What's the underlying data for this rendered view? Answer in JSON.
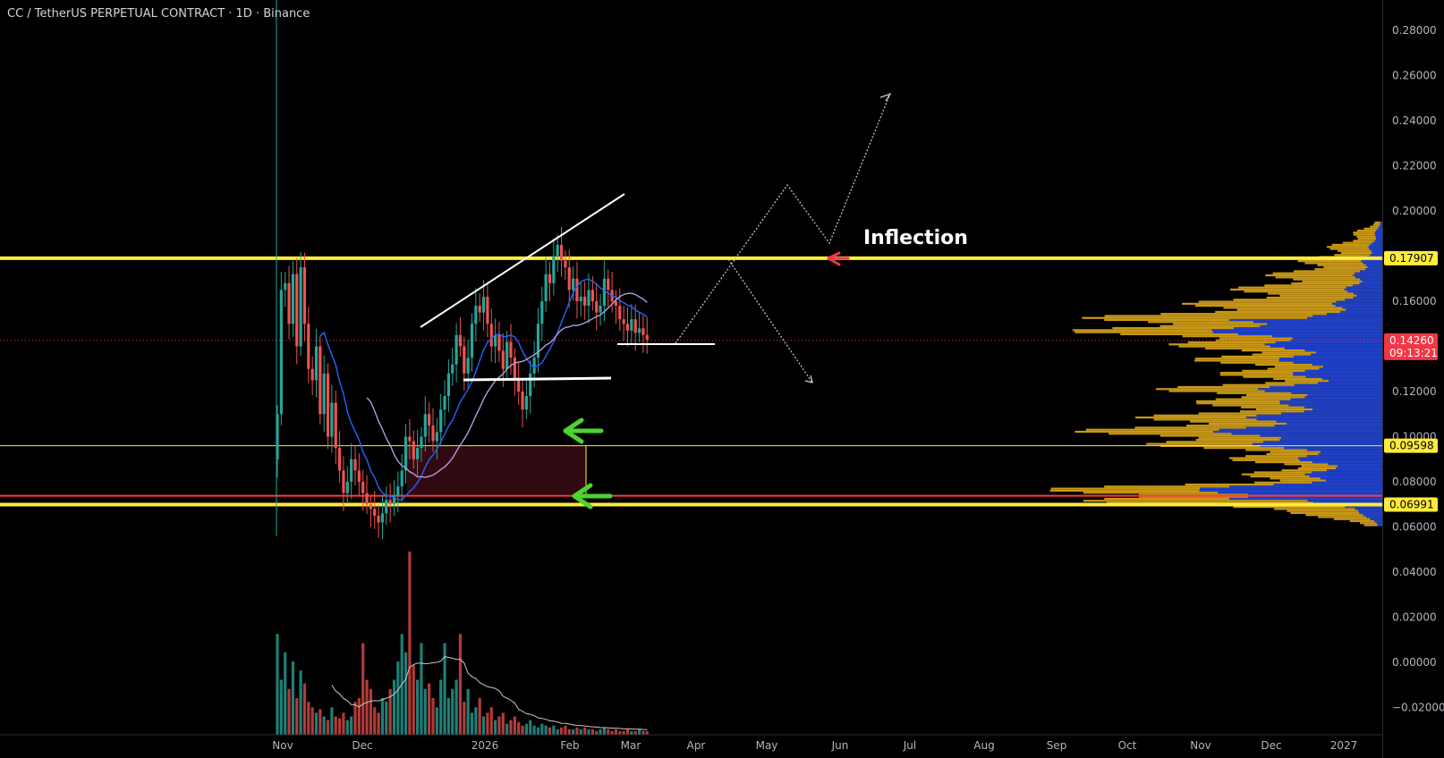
{
  "header": {
    "title": "CC / TetherUS PERPETUAL CONTRACT · 1D · Binance"
  },
  "annotation": {
    "inflection": "Inflection"
  },
  "colors": {
    "background": "#000000",
    "up": "#26a69a",
    "down": "#ef5350",
    "up_volume": "#1f7f77",
    "down_volume": "#b23b39",
    "level": "#ffeb3b",
    "ma_fast": "#2962ff",
    "ma_slow": "#b39ddb",
    "profile_gold": "#d4a017",
    "profile_blue": "#2346d4",
    "current_price": "#f23645",
    "support_red": "#ff3b30",
    "arrow_green": "#4cd430",
    "arrow_red": "#f23645"
  },
  "chart_data": {
    "type": "candlestick",
    "title": "CC / TetherUS PERPETUAL CONTRACT · 1D · Binance",
    "x_ticks": [
      "Nov",
      "Dec",
      "2026",
      "Feb",
      "Mar",
      "Apr",
      "May",
      "Jun",
      "Jul",
      "Aug",
      "Sep",
      "Oct",
      "Nov",
      "Dec",
      "2027"
    ],
    "y_ticks": [
      "0.28000",
      "0.26000",
      "0.24000",
      "0.22000",
      "0.20000",
      "0.18000",
      "0.16000",
      "0.14000",
      "0.12000",
      "0.10000",
      "0.08000",
      "0.06000",
      "0.04000",
      "0.02000",
      "0.00000",
      "−0.02000"
    ],
    "ylim": [
      -0.03,
      0.29
    ],
    "price_labels": {
      "resistance": "0.17907",
      "current": "0.14260",
      "countdown": "09:13:21",
      "mid_support": "0.09598",
      "low_support": "0.06991"
    },
    "levels": {
      "resistance": 0.17907,
      "mid_support": 0.09598,
      "low_support": 0.06991,
      "red_line": 0.0738,
      "current": 0.1426
    },
    "closes": [
      0.11,
      0.165,
      0.168,
      0.15,
      0.172,
      0.14,
      0.175,
      0.15,
      0.13,
      0.125,
      0.14,
      0.11,
      0.128,
      0.1,
      0.115,
      0.095,
      0.085,
      0.075,
      0.08,
      0.09,
      0.085,
      0.08,
      0.075,
      0.07,
      0.068,
      0.065,
      0.062,
      0.066,
      0.072,
      0.07,
      0.074,
      0.078,
      0.085,
      0.1,
      0.098,
      0.09,
      0.095,
      0.1,
      0.11,
      0.105,
      0.098,
      0.102,
      0.112,
      0.118,
      0.128,
      0.132,
      0.145,
      0.14,
      0.128,
      0.135,
      0.15,
      0.158,
      0.155,
      0.162,
      0.15,
      0.14,
      0.145,
      0.138,
      0.13,
      0.142,
      0.135,
      0.125,
      0.12,
      0.112,
      0.118,
      0.128,
      0.135,
      0.15,
      0.16,
      0.172,
      0.168,
      0.18,
      0.185,
      0.178,
      0.175,
      0.165,
      0.17,
      0.16,
      0.162,
      0.158,
      0.165,
      0.16,
      0.155,
      0.158,
      0.17,
      0.165,
      0.16,
      0.158,
      0.152,
      0.15,
      0.147,
      0.152,
      0.146,
      0.148,
      0.145,
      0.143
    ],
    "volume_rel": [
      0.55,
      0.3,
      0.45,
      0.25,
      0.4,
      0.2,
      0.35,
      0.28,
      0.18,
      0.15,
      0.12,
      0.14,
      0.1,
      0.08,
      0.15,
      0.1,
      0.09,
      0.12,
      0.08,
      0.1,
      0.18,
      0.2,
      0.5,
      0.3,
      0.25,
      0.15,
      0.12,
      0.2,
      0.18,
      0.25,
      0.3,
      0.4,
      0.55,
      0.45,
      1.0,
      0.38,
      0.3,
      0.5,
      0.25,
      0.28,
      0.2,
      0.15,
      0.3,
      0.5,
      0.2,
      0.25,
      0.3,
      0.55,
      0.18,
      0.25,
      0.12,
      0.15,
      0.2,
      0.1,
      0.12,
      0.15,
      0.08,
      0.1,
      0.12,
      0.06,
      0.08,
      0.1,
      0.07,
      0.05,
      0.06,
      0.08,
      0.05,
      0.04,
      0.06,
      0.05,
      0.04,
      0.05,
      0.03,
      0.04,
      0.05,
      0.03,
      0.03,
      0.04,
      0.03,
      0.04,
      0.03,
      0.03,
      0.02,
      0.03,
      0.04,
      0.03,
      0.02,
      0.03,
      0.02,
      0.02,
      0.03,
      0.02,
      0.02,
      0.03,
      0.02,
      0.02
    ]
  }
}
